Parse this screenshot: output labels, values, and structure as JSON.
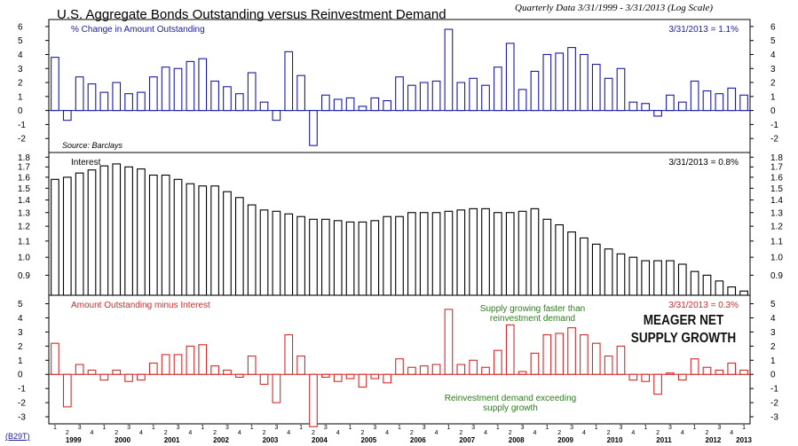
{
  "header": {
    "title": "U.S. Aggregate Bonds Outstanding versus Reinvestment Demand",
    "subtitle": "Quarterly Data 3/31/1999 - 3/31/2013 (Log Scale)",
    "code": "(B29T)"
  },
  "colors": {
    "blue": "#1a1aa6",
    "black": "#000000",
    "red": "#d42a2a",
    "green": "#2e7d1e"
  },
  "chart_data": [
    {
      "type": "bar",
      "title": "% Change in Amount Outstanding",
      "latest_label": "3/31/2013 = 1.1%",
      "source": "Source: Barclays",
      "ylim": [
        -3,
        6.5
      ],
      "yticks": [
        -2,
        -1,
        0,
        1,
        2,
        3,
        4,
        5,
        6
      ],
      "values": [
        3.8,
        -0.7,
        2.4,
        1.9,
        1.3,
        2.0,
        1.2,
        1.3,
        2.4,
        3.1,
        3.0,
        3.5,
        3.7,
        2.1,
        1.7,
        1.2,
        2.7,
        0.6,
        -0.7,
        4.2,
        2.5,
        -2.5,
        1.1,
        0.8,
        0.9,
        0.3,
        0.9,
        0.7,
        2.4,
        1.8,
        2.0,
        2.1,
        5.8,
        2.0,
        2.3,
        1.8,
        3.1,
        4.8,
        1.5,
        2.8,
        4.0,
        4.1,
        4.5,
        4.0,
        3.3,
        2.3,
        3.0,
        0.6,
        0.5,
        -0.4,
        1.1,
        0.6,
        2.1,
        1.4,
        1.2,
        1.6,
        1.1
      ]
    },
    {
      "type": "bar",
      "title": "Interest",
      "latest_label": "3/31/2013 = 0.8%",
      "ylim": [
        0.8,
        1.85
      ],
      "yticks": [
        0.9,
        1.0,
        1.1,
        1.2,
        1.3,
        1.4,
        1.5,
        1.6,
        1.7,
        1.8
      ],
      "log_scale": true,
      "values": [
        1.58,
        1.6,
        1.64,
        1.67,
        1.71,
        1.73,
        1.7,
        1.68,
        1.62,
        1.62,
        1.58,
        1.54,
        1.52,
        1.52,
        1.47,
        1.42,
        1.36,
        1.32,
        1.31,
        1.29,
        1.27,
        1.25,
        1.25,
        1.24,
        1.23,
        1.23,
        1.24,
        1.27,
        1.27,
        1.3,
        1.3,
        1.3,
        1.31,
        1.32,
        1.33,
        1.33,
        1.3,
        1.3,
        1.31,
        1.33,
        1.25,
        1.21,
        1.16,
        1.12,
        1.08,
        1.05,
        1.02,
        1.0,
        0.98,
        0.98,
        0.98,
        0.96,
        0.92,
        0.9,
        0.87,
        0.84,
        0.82
      ]
    },
    {
      "type": "bar",
      "title": "Amount Outstanding minus Interest",
      "latest_label": "3/31/2013 = 0.3%",
      "ylim": [
        -3.5,
        5.6
      ],
      "yticks": [
        -3,
        -2,
        -1,
        0,
        1,
        2,
        3,
        4,
        5
      ],
      "values": [
        2.2,
        -2.3,
        0.7,
        0.3,
        -0.4,
        0.3,
        -0.5,
        -0.4,
        0.8,
        1.4,
        1.4,
        2.0,
        2.1,
        0.6,
        0.3,
        -0.2,
        1.3,
        -0.7,
        -2.0,
        2.8,
        1.3,
        -3.7,
        -0.2,
        -0.5,
        -0.3,
        -0.9,
        -0.3,
        -0.6,
        1.1,
        0.5,
        0.6,
        0.7,
        4.6,
        0.7,
        1.0,
        0.5,
        1.7,
        3.5,
        0.2,
        1.5,
        2.8,
        2.9,
        3.3,
        2.8,
        2.2,
        1.3,
        2.0,
        -0.4,
        -0.5,
        -1.4,
        0.1,
        -0.4,
        1.1,
        0.5,
        0.3,
        0.8,
        0.3
      ],
      "annotations": {
        "supply": "Supply growing faster than\nreinvestment demand",
        "demand": "Reinvestment demand exceeding\nsupply growth",
        "headline": "MEAGER NET\nSUPPLY GROWTH"
      }
    }
  ],
  "x_axis": {
    "quarters": [
      "1",
      "2",
      "3",
      "4"
    ],
    "years": [
      "1999",
      "2000",
      "2001",
      "2002",
      "2003",
      "2004",
      "2005",
      "2006",
      "2007",
      "2008",
      "2009",
      "2010",
      "2011",
      "2012",
      "2013"
    ]
  }
}
